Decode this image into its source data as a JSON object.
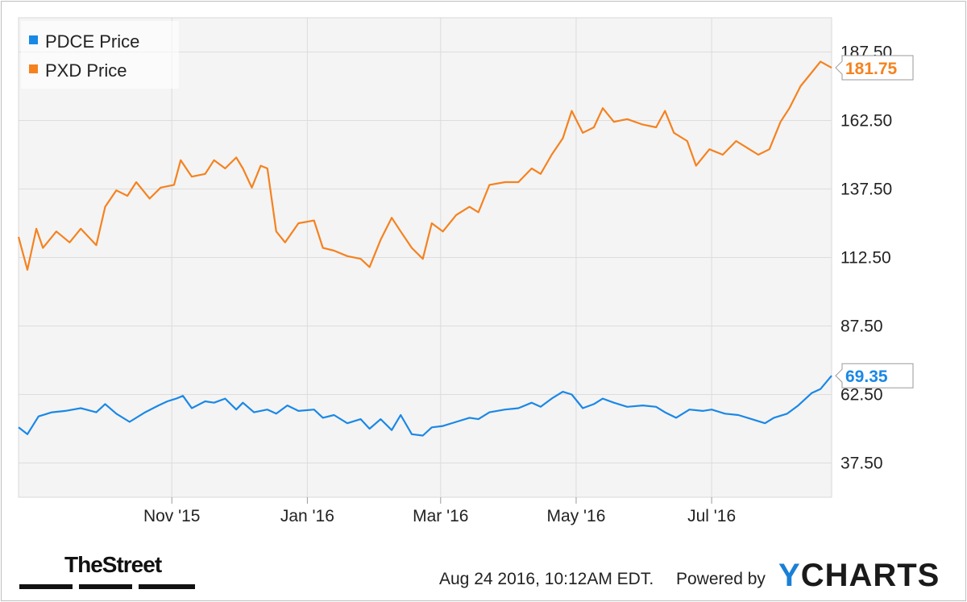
{
  "chart_data": {
    "type": "line",
    "x_ticks": [
      "Nov '15",
      "Jan '16",
      "Mar '16",
      "May '16",
      "Jul '16"
    ],
    "y_ticks": [
      "187.50",
      "162.50",
      "137.50",
      "112.50",
      "87.50",
      "62.50",
      "37.50"
    ],
    "ylim": [
      25,
      200
    ],
    "grid": true,
    "legend_position": "top-left",
    "x_start": "2015-08-24",
    "x_end": "2016-08-24",
    "series": [
      {
        "name": "PDCE Price",
        "color": "#1a88e6",
        "last_value_label": "69.35",
        "last_value": 69.35,
        "points": [
          [
            "2015-08-24",
            50.5
          ],
          [
            "2015-08-28",
            48.0
          ],
          [
            "2015-09-02",
            54.5
          ],
          [
            "2015-09-08",
            56.0
          ],
          [
            "2015-09-14",
            56.5
          ],
          [
            "2015-09-21",
            57.5
          ],
          [
            "2015-09-28",
            56.0
          ],
          [
            "2015-10-02",
            59.0
          ],
          [
            "2015-10-07",
            55.5
          ],
          [
            "2015-10-13",
            52.5
          ],
          [
            "2015-10-20",
            56.0
          ],
          [
            "2015-10-26",
            58.5
          ],
          [
            "2015-10-30",
            60.0
          ],
          [
            "2015-11-03",
            61.0
          ],
          [
            "2015-11-06",
            62.0
          ],
          [
            "2015-11-10",
            57.5
          ],
          [
            "2015-11-16",
            60.0
          ],
          [
            "2015-11-20",
            59.5
          ],
          [
            "2015-11-25",
            61.0
          ],
          [
            "2015-11-30",
            57.0
          ],
          [
            "2015-12-03",
            59.5
          ],
          [
            "2015-12-08",
            56.0
          ],
          [
            "2015-12-14",
            57.0
          ],
          [
            "2015-12-18",
            55.5
          ],
          [
            "2015-12-23",
            58.5
          ],
          [
            "2015-12-28",
            56.5
          ],
          [
            "2016-01-04",
            57.0
          ],
          [
            "2016-01-08",
            54.0
          ],
          [
            "2016-01-13",
            55.0
          ],
          [
            "2016-01-19",
            52.0
          ],
          [
            "2016-01-25",
            53.5
          ],
          [
            "2016-01-29",
            50.0
          ],
          [
            "2016-02-03",
            53.5
          ],
          [
            "2016-02-08",
            49.5
          ],
          [
            "2016-02-12",
            55.0
          ],
          [
            "2016-02-17",
            48.0
          ],
          [
            "2016-02-22",
            47.5
          ],
          [
            "2016-02-26",
            50.5
          ],
          [
            "2016-03-02",
            51.0
          ],
          [
            "2016-03-08",
            52.5
          ],
          [
            "2016-03-14",
            54.0
          ],
          [
            "2016-03-18",
            53.5
          ],
          [
            "2016-03-23",
            56.0
          ],
          [
            "2016-03-30",
            57.0
          ],
          [
            "2016-04-05",
            57.5
          ],
          [
            "2016-04-11",
            59.5
          ],
          [
            "2016-04-15",
            58.0
          ],
          [
            "2016-04-20",
            61.0
          ],
          [
            "2016-04-25",
            63.5
          ],
          [
            "2016-04-29",
            62.5
          ],
          [
            "2016-05-04",
            57.5
          ],
          [
            "2016-05-09",
            59.0
          ],
          [
            "2016-05-13",
            61.0
          ],
          [
            "2016-05-18",
            59.5
          ],
          [
            "2016-05-24",
            58.0
          ],
          [
            "2016-05-31",
            58.5
          ],
          [
            "2016-06-06",
            58.0
          ],
          [
            "2016-06-10",
            56.0
          ],
          [
            "2016-06-15",
            54.0
          ],
          [
            "2016-06-21",
            57.0
          ],
          [
            "2016-06-27",
            56.5
          ],
          [
            "2016-07-01",
            57.0
          ],
          [
            "2016-07-07",
            55.5
          ],
          [
            "2016-07-13",
            55.0
          ],
          [
            "2016-07-19",
            53.5
          ],
          [
            "2016-07-25",
            52.0
          ],
          [
            "2016-07-29",
            54.0
          ],
          [
            "2016-08-04",
            55.5
          ],
          [
            "2016-08-09",
            58.5
          ],
          [
            "2016-08-15",
            63.0
          ],
          [
            "2016-08-19",
            64.5
          ],
          [
            "2016-08-24",
            69.35
          ]
        ]
      },
      {
        "name": "PXD Price",
        "color": "#f5821f",
        "last_value_label": "181.75",
        "last_value": 181.75,
        "points": [
          [
            "2015-08-24",
            120.0
          ],
          [
            "2015-08-28",
            108.0
          ],
          [
            "2015-09-01",
            123.0
          ],
          [
            "2015-09-04",
            116.0
          ],
          [
            "2015-09-10",
            122.0
          ],
          [
            "2015-09-16",
            118.0
          ],
          [
            "2015-09-21",
            123.0
          ],
          [
            "2015-09-28",
            117.0
          ],
          [
            "2015-10-02",
            131.0
          ],
          [
            "2015-10-07",
            137.0
          ],
          [
            "2015-10-12",
            135.0
          ],
          [
            "2015-10-16",
            140.0
          ],
          [
            "2015-10-22",
            134.0
          ],
          [
            "2015-10-27",
            138.0
          ],
          [
            "2015-11-02",
            139.0
          ],
          [
            "2015-11-05",
            148.0
          ],
          [
            "2015-11-10",
            142.0
          ],
          [
            "2015-11-16",
            143.0
          ],
          [
            "2015-11-20",
            148.0
          ],
          [
            "2015-11-25",
            145.0
          ],
          [
            "2015-11-30",
            149.0
          ],
          [
            "2015-12-03",
            145.0
          ],
          [
            "2015-12-07",
            138.0
          ],
          [
            "2015-12-11",
            146.0
          ],
          [
            "2015-12-14",
            145.0
          ],
          [
            "2015-12-18",
            122.0
          ],
          [
            "2015-12-22",
            118.0
          ],
          [
            "2015-12-28",
            125.0
          ],
          [
            "2016-01-04",
            126.0
          ],
          [
            "2016-01-08",
            116.0
          ],
          [
            "2016-01-13",
            115.0
          ],
          [
            "2016-01-19",
            113.0
          ],
          [
            "2016-01-25",
            112.0
          ],
          [
            "2016-01-29",
            109.0
          ],
          [
            "2016-02-03",
            119.0
          ],
          [
            "2016-02-08",
            127.0
          ],
          [
            "2016-02-12",
            122.0
          ],
          [
            "2016-02-17",
            116.0
          ],
          [
            "2016-02-22",
            112.0
          ],
          [
            "2016-02-26",
            125.0
          ],
          [
            "2016-03-02",
            122.0
          ],
          [
            "2016-03-08",
            128.0
          ],
          [
            "2016-03-14",
            131.0
          ],
          [
            "2016-03-18",
            129.0
          ],
          [
            "2016-03-23",
            139.0
          ],
          [
            "2016-03-30",
            140.0
          ],
          [
            "2016-04-05",
            140.0
          ],
          [
            "2016-04-11",
            145.0
          ],
          [
            "2016-04-15",
            143.0
          ],
          [
            "2016-04-20",
            150.0
          ],
          [
            "2016-04-25",
            156.0
          ],
          [
            "2016-04-29",
            166.0
          ],
          [
            "2016-05-04",
            158.0
          ],
          [
            "2016-05-09",
            160.0
          ],
          [
            "2016-05-13",
            167.0
          ],
          [
            "2016-05-18",
            162.0
          ],
          [
            "2016-05-24",
            163.0
          ],
          [
            "2016-05-31",
            161.0
          ],
          [
            "2016-06-06",
            160.0
          ],
          [
            "2016-06-10",
            166.0
          ],
          [
            "2016-06-14",
            158.0
          ],
          [
            "2016-06-20",
            155.0
          ],
          [
            "2016-06-24",
            146.0
          ],
          [
            "2016-06-30",
            152.0
          ],
          [
            "2016-07-06",
            150.0
          ],
          [
            "2016-07-12",
            155.0
          ],
          [
            "2016-07-18",
            152.0
          ],
          [
            "2016-07-22",
            150.0
          ],
          [
            "2016-07-27",
            152.0
          ],
          [
            "2016-08-01",
            162.0
          ],
          [
            "2016-08-05",
            167.0
          ],
          [
            "2016-08-10",
            175.0
          ],
          [
            "2016-08-15",
            180.0
          ],
          [
            "2016-08-19",
            184.0
          ],
          [
            "2016-08-24",
            181.75
          ]
        ]
      }
    ]
  },
  "footer": {
    "timestamp": "Aug 24 2016, 10:12AM EDT.",
    "powered_by": "Powered by",
    "brand_y": "Y",
    "brand_rest": "CHARTS"
  },
  "logos": {
    "thestreet": "TheStreet"
  }
}
